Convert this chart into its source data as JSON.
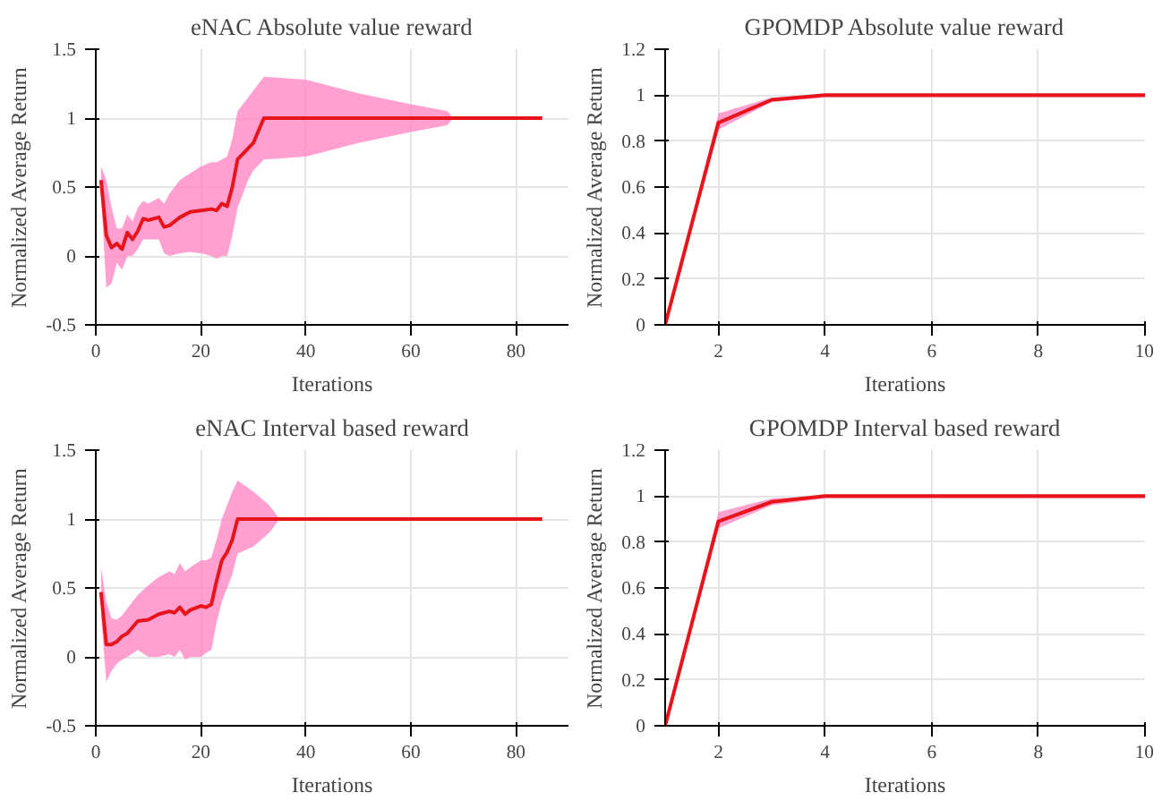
{
  "chart_data": [
    {
      "type": "line",
      "title": "eNAC Absolute value reward",
      "xlabel": "Iterations",
      "ylabel": "Normalized Average Return",
      "x": [
        1,
        2,
        3,
        4,
        5,
        6,
        7,
        8,
        9,
        10,
        12,
        13,
        14,
        16,
        18,
        20,
        22,
        23,
        24,
        25,
        26,
        27,
        29,
        30,
        32,
        40,
        50,
        60,
        67,
        68,
        85
      ],
      "series": [
        {
          "color": "#e8141c",
          "values": [
            0.55,
            0.15,
            0.06,
            0.09,
            0.05,
            0.17,
            0.12,
            0.18,
            0.27,
            0.26,
            0.28,
            0.21,
            0.22,
            0.28,
            0.32,
            0.33,
            0.34,
            0.33,
            0.38,
            0.36,
            0.5,
            0.7,
            0.78,
            0.82,
            1.0,
            1.0,
            1.0,
            1.0,
            1.0,
            1.0,
            1.0
          ],
          "lower": [
            0.45,
            -0.23,
            -0.2,
            -0.05,
            -0.1,
            0.0,
            0.0,
            0.05,
            0.12,
            0.12,
            0.12,
            0.02,
            0.0,
            0.02,
            0.03,
            0.02,
            0.0,
            -0.02,
            0.0,
            0.0,
            0.15,
            0.35,
            0.55,
            0.62,
            0.7,
            0.72,
            0.82,
            0.9,
            0.95,
            1.0,
            1.0
          ],
          "upper": [
            0.65,
            0.55,
            0.35,
            0.2,
            0.2,
            0.3,
            0.25,
            0.35,
            0.4,
            0.38,
            0.42,
            0.38,
            0.45,
            0.55,
            0.6,
            0.65,
            0.68,
            0.68,
            0.7,
            0.72,
            0.85,
            1.05,
            1.15,
            1.2,
            1.3,
            1.28,
            1.18,
            1.1,
            1.05,
            1.0,
            1.0
          ]
        }
      ],
      "xlim": [
        0,
        90
      ],
      "xticks": [
        0,
        20,
        40,
        60,
        80
      ],
      "ylim": [
        -0.5,
        1.5
      ],
      "yticks": [
        -0.5,
        0,
        0.5,
        1,
        1.5
      ],
      "grid": true,
      "line_style": "solid"
    },
    {
      "type": "line",
      "title": "GPOMDP Absolute value reward",
      "xlabel": "Iterations",
      "ylabel": "Normalized Average Return",
      "x": [
        1,
        2,
        3,
        4,
        5,
        6,
        7,
        8,
        9,
        10
      ],
      "series": [
        {
          "color": "#e8141c",
          "values": [
            0,
            0.88,
            0.98,
            1.0,
            1.0,
            1.0,
            1.0,
            1.0,
            1.0,
            1.0
          ],
          "lower": [
            0,
            0.85,
            0.97,
            0.99,
            0.99,
            0.99,
            0.99,
            0.99,
            0.99,
            0.99
          ],
          "upper": [
            0,
            0.92,
            0.99,
            1.0,
            1.0,
            1.0,
            1.0,
            1.0,
            1.0,
            1.0
          ]
        }
      ],
      "xlim": [
        1,
        10
      ],
      "xticks": [
        2,
        4,
        6,
        8,
        10
      ],
      "ylim": [
        0,
        1.2
      ],
      "yticks": [
        0,
        0.2,
        0.4,
        0.6,
        0.8,
        1,
        1.2
      ],
      "grid": true,
      "line_style": "solid"
    },
    {
      "type": "line",
      "title": "eNAC Interval based reward",
      "xlabel": "Iterations",
      "ylabel": "Normalized Average Return",
      "x": [
        1,
        2,
        3,
        4,
        5,
        6,
        8,
        10,
        12,
        14,
        15,
        16,
        17,
        18,
        20,
        21,
        22,
        23,
        24,
        25,
        26,
        27,
        30,
        33,
        35,
        85
      ],
      "series": [
        {
          "color": "#e8141c",
          "values": [
            0.47,
            0.09,
            0.09,
            0.11,
            0.15,
            0.17,
            0.26,
            0.27,
            0.31,
            0.33,
            0.32,
            0.36,
            0.31,
            0.34,
            0.37,
            0.36,
            0.38,
            0.55,
            0.7,
            0.76,
            0.85,
            1.0,
            1.0,
            1.0,
            1.0,
            1.0
          ],
          "lower": [
            0.3,
            -0.18,
            -0.1,
            -0.05,
            -0.02,
            0.0,
            0.05,
            0.0,
            0.0,
            0.02,
            0.0,
            0.05,
            -0.02,
            0.0,
            0.0,
            0.03,
            0.05,
            0.25,
            0.4,
            0.5,
            0.6,
            0.75,
            0.8,
            0.9,
            1.0,
            1.0
          ],
          "upper": [
            0.65,
            0.4,
            0.28,
            0.27,
            0.3,
            0.35,
            0.45,
            0.52,
            0.58,
            0.62,
            0.6,
            0.68,
            0.62,
            0.65,
            0.7,
            0.7,
            0.72,
            0.85,
            1.0,
            1.1,
            1.2,
            1.28,
            1.2,
            1.1,
            1.0,
            1.0
          ]
        }
      ],
      "xlim": [
        0,
        90
      ],
      "xticks": [
        0,
        20,
        40,
        60,
        80
      ],
      "ylim": [
        -0.5,
        1.5
      ],
      "yticks": [
        -0.5,
        0,
        0.5,
        1,
        1.5
      ],
      "grid": true,
      "line_style": "solid"
    },
    {
      "type": "line",
      "title": "GPOMDP Interval based reward",
      "xlabel": "Iterations",
      "ylabel": "Normalized Average Return",
      "x": [
        1,
        2,
        3,
        4,
        5,
        6,
        7,
        8,
        9,
        10
      ],
      "series": [
        {
          "color": "#e8141c",
          "values": [
            0,
            0.89,
            0.975,
            1.0,
            1.0,
            1.0,
            1.0,
            1.0,
            1.0,
            1.0
          ],
          "lower": [
            0,
            0.86,
            0.96,
            0.99,
            0.99,
            0.99,
            0.99,
            0.99,
            0.99,
            0.99
          ],
          "upper": [
            0,
            0.93,
            0.99,
            1.0,
            1.0,
            1.0,
            1.0,
            1.0,
            1.0,
            1.0
          ]
        }
      ],
      "xlim": [
        1,
        10
      ],
      "xticks": [
        2,
        4,
        6,
        8,
        10
      ],
      "ylim": [
        0,
        1.2
      ],
      "yticks": [
        0,
        0.2,
        0.4,
        0.6,
        0.8,
        1,
        1.2
      ],
      "grid": true,
      "line_style": "solid"
    }
  ]
}
